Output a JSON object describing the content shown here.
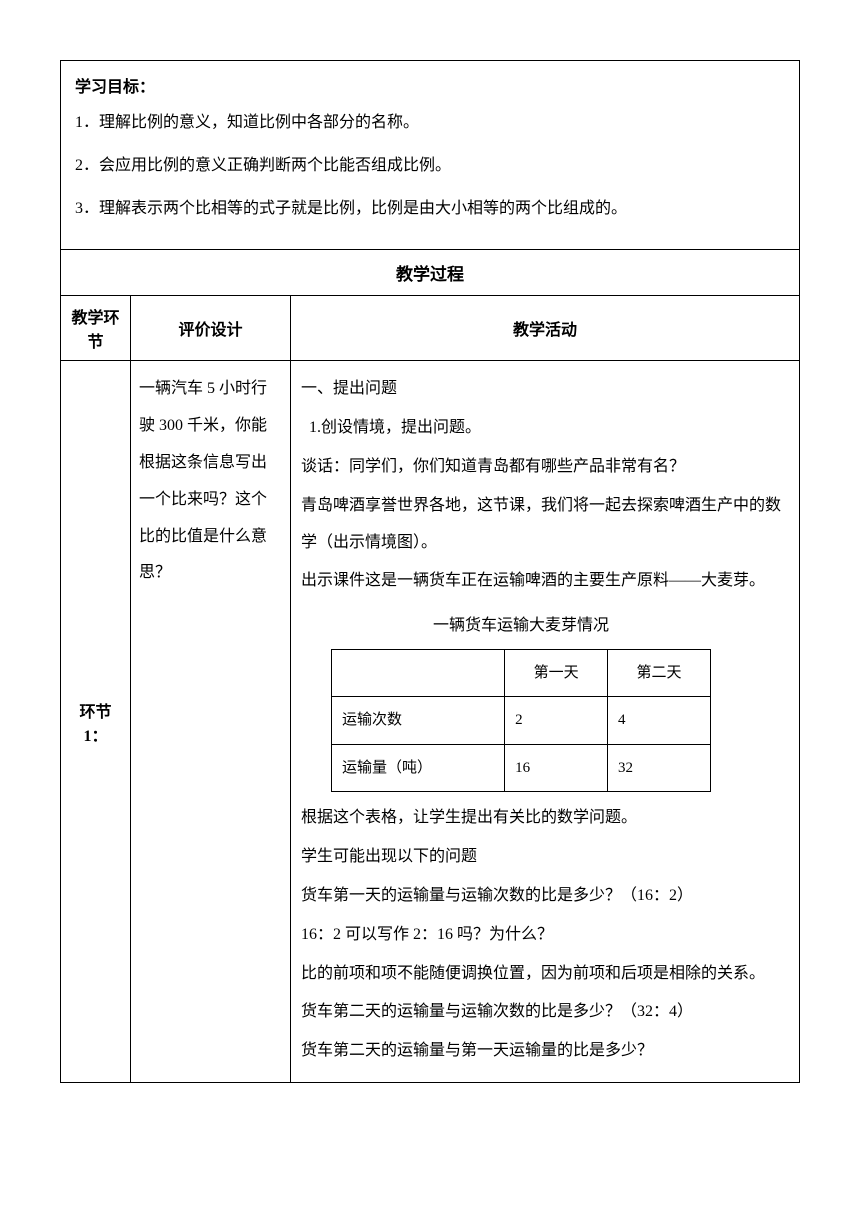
{
  "objectives": {
    "title": "学习目标：",
    "items": [
      "1．理解比例的意义，知道比例中各部分的名称。",
      "2．会应用比例的意义正确判断两个比能否组成比例。",
      "3．理解表示两个比相等的式子就是比例，比例是由大小相等的两个比组成的。"
    ]
  },
  "process_header": "教学过程",
  "columns": {
    "c1_line1": "教学环",
    "c1_line2": "节",
    "c2": "评价设计",
    "c3": "教学活动"
  },
  "segment1": {
    "label": "环节 1：",
    "evaluation": "一辆汽车 5 小时行驶 300 千米，你能根据这条信息写出一个比来吗？这个比的比值是什么意思？",
    "activity": {
      "line1": "一、提出问题",
      "line2": "1.创设情境，提出问题。",
      "line3": "谈话：同学们，你们知道青岛都有哪些产品非常有名？",
      "line4": "青岛啤酒享誉世界各地，这节课，我们将一起去探索啤酒生产中的数学（出示情境图）。",
      "line5": "出示课件这是一辆货车正在运输啤酒的主要生产原料——大麦芽。",
      "table": {
        "title": "一辆货车运输大麦芽情况",
        "header_blank": "",
        "header_day1": "第一天",
        "header_day2": "第二天",
        "row1_label": "运输次数",
        "row1_v1": "2",
        "row1_v2": "4",
        "row2_label": "运输量（吨）",
        "row2_v1": "16",
        "row2_v2": "32"
      },
      "line6": "根据这个表格，让学生提出有关比的数学问题。",
      "line7": "学生可能出现以下的问题",
      "line8": "货车第一天的运输量与运输次数的比是多少？（16：2）",
      "line9": "16：2 可以写作 2：16 吗？为什么？",
      "line10": "比的前项和项不能随便调换位置，因为前项和后项是相除的关系。",
      "line11": "货车第二天的运输量与运输次数的比是多少？（32：4）",
      "line12": "货车第二天的运输量与第一天运输量的比是多少？"
    }
  }
}
